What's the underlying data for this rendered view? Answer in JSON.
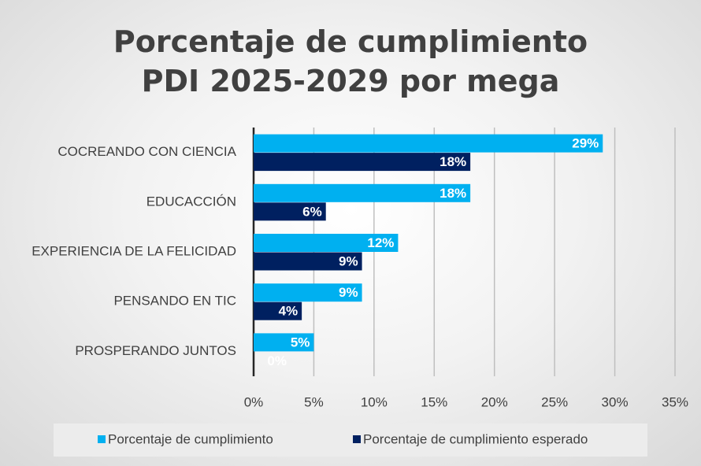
{
  "chart_data": {
    "type": "hbar",
    "title": "Porcentaje de cumplimiento PDI 2025-2029 por mega",
    "categories": [
      "COCREANDO CON CIENCIA",
      "EDUCACCIÓN",
      "EXPERIENCIA DE LA FELICIDAD",
      "PENSANDO EN TIC",
      "PROSPERANDO JUNTOS"
    ],
    "series": [
      {
        "name": "Porcentaje de cumplimiento",
        "color": "#00b0f0",
        "values": [
          29,
          18,
          12,
          9,
          5
        ],
        "value_labels": [
          "29%",
          "18%",
          "12%",
          "9%",
          "5%"
        ]
      },
      {
        "name": "Porcentaje de cumplimiento esperado",
        "color": "#002060",
        "values": [
          18,
          6,
          9,
          4,
          0
        ],
        "value_labels": [
          "18%",
          "6%",
          "9%",
          "4%",
          "0%"
        ]
      }
    ],
    "xlim": [
      0,
      35
    ],
    "xticks": [
      {
        "value": 0,
        "label": "0%"
      },
      {
        "value": 5,
        "label": "5%"
      },
      {
        "value": 10,
        "label": "10%"
      },
      {
        "value": 15,
        "label": "15%"
      },
      {
        "value": 20,
        "label": "20%"
      },
      {
        "value": 25,
        "label": "25%"
      },
      {
        "value": 30,
        "label": "30%"
      },
      {
        "value": 35,
        "label": "35%"
      }
    ],
    "grid": true,
    "legend": "bottom"
  }
}
